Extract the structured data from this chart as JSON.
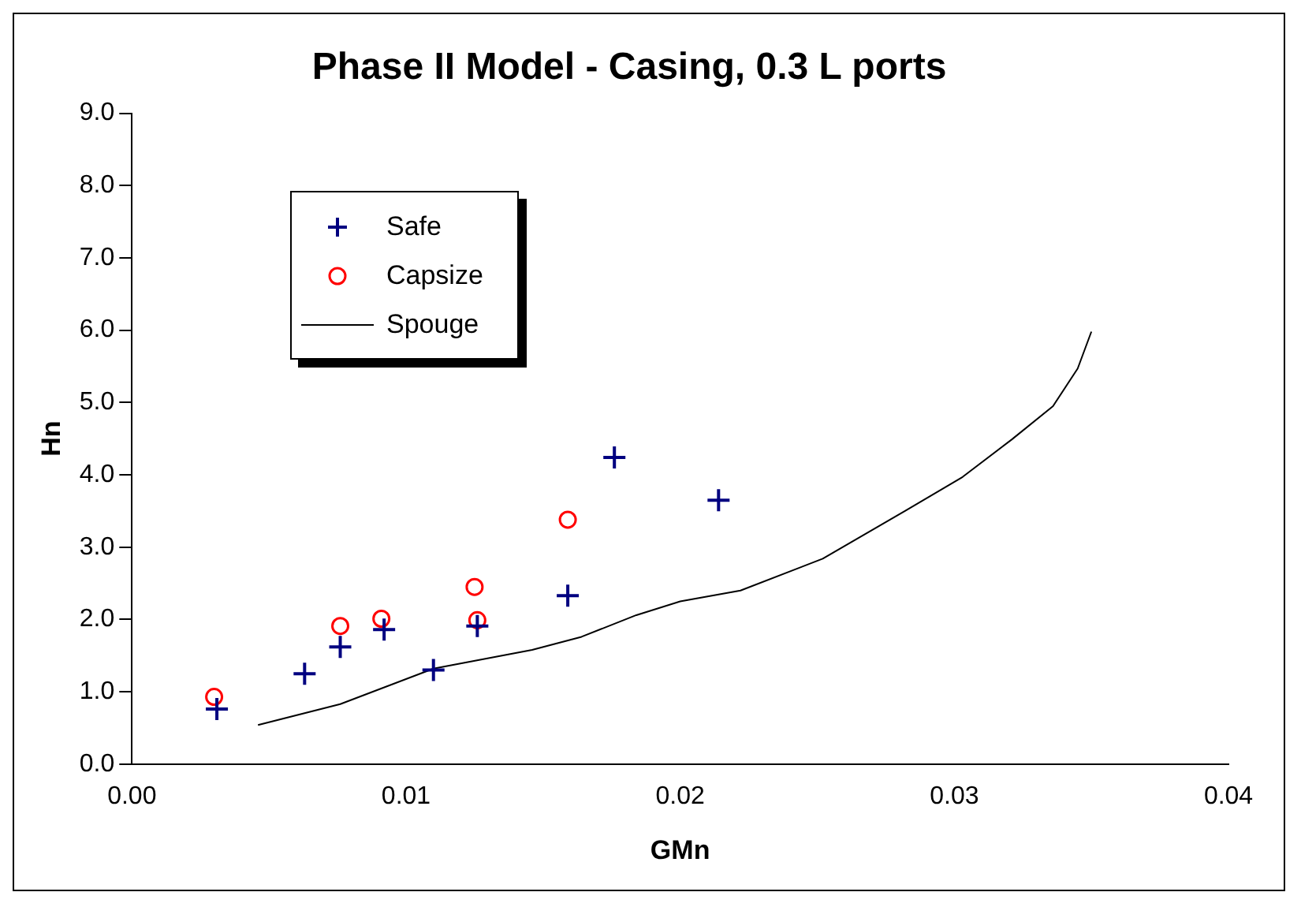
{
  "chart_data": {
    "type": "scatter",
    "title": "Phase II Model - Casing, 0.3 L ports",
    "xlabel": "GMn",
    "ylabel": "Hn",
    "xlim": [
      0,
      0.04
    ],
    "xticks": [
      {
        "value": 0,
        "label": "0.00"
      },
      {
        "value": 0.01,
        "label": "0.01"
      },
      {
        "value": 0.02,
        "label": "0.02"
      },
      {
        "value": 0.03,
        "label": "0.03"
      },
      {
        "value": 0.04,
        "label": "0.04"
      }
    ],
    "ylim": [
      0,
      9
    ],
    "yticks": [
      {
        "value": 0,
        "label": "0.0"
      },
      {
        "value": 1,
        "label": "1.0"
      },
      {
        "value": 2,
        "label": "2.0"
      },
      {
        "value": 3,
        "label": "3.0"
      },
      {
        "value": 4,
        "label": "4.0"
      },
      {
        "value": 5,
        "label": "5.0"
      },
      {
        "value": 6,
        "label": "6.0"
      },
      {
        "value": 7,
        "label": "7.0"
      },
      {
        "value": 8,
        "label": "8.0"
      },
      {
        "value": 9,
        "label": "9.0"
      }
    ],
    "grid": false,
    "legend": "top left",
    "series": [
      {
        "name": "Safe",
        "type": "scatter",
        "marker": "cross",
        "color": "#000080",
        "x": [
          0.0031,
          0.0063,
          0.0076,
          0.0092,
          0.011,
          0.0126,
          0.0159,
          0.0176,
          0.0214
        ],
        "values": [
          0.76,
          1.25,
          1.62,
          1.86,
          1.3,
          1.91,
          2.33,
          4.24,
          3.65
        ]
      },
      {
        "name": "Capsize",
        "type": "scatter",
        "marker": "circle",
        "color": "#ff0000",
        "x": [
          0.003,
          0.0076,
          0.0091,
          0.0125,
          0.0126,
          0.0159
        ],
        "values": [
          0.93,
          1.91,
          2.01,
          2.45,
          1.99,
          3.38
        ]
      },
      {
        "name": "Spouge",
        "type": "line",
        "marker": "none",
        "line_style": "solid",
        "color": "#000000",
        "x": [
          0.0046,
          0.0076,
          0.011,
          0.0146,
          0.0164,
          0.0184,
          0.02,
          0.0222,
          0.0252,
          0.0282,
          0.0303,
          0.0321,
          0.0336,
          0.0345,
          0.035
        ],
        "values": [
          0.54,
          0.83,
          1.32,
          1.58,
          1.76,
          2.06,
          2.25,
          2.4,
          2.84,
          3.5,
          3.97,
          4.49,
          4.95,
          5.47,
          5.98
        ]
      }
    ]
  }
}
